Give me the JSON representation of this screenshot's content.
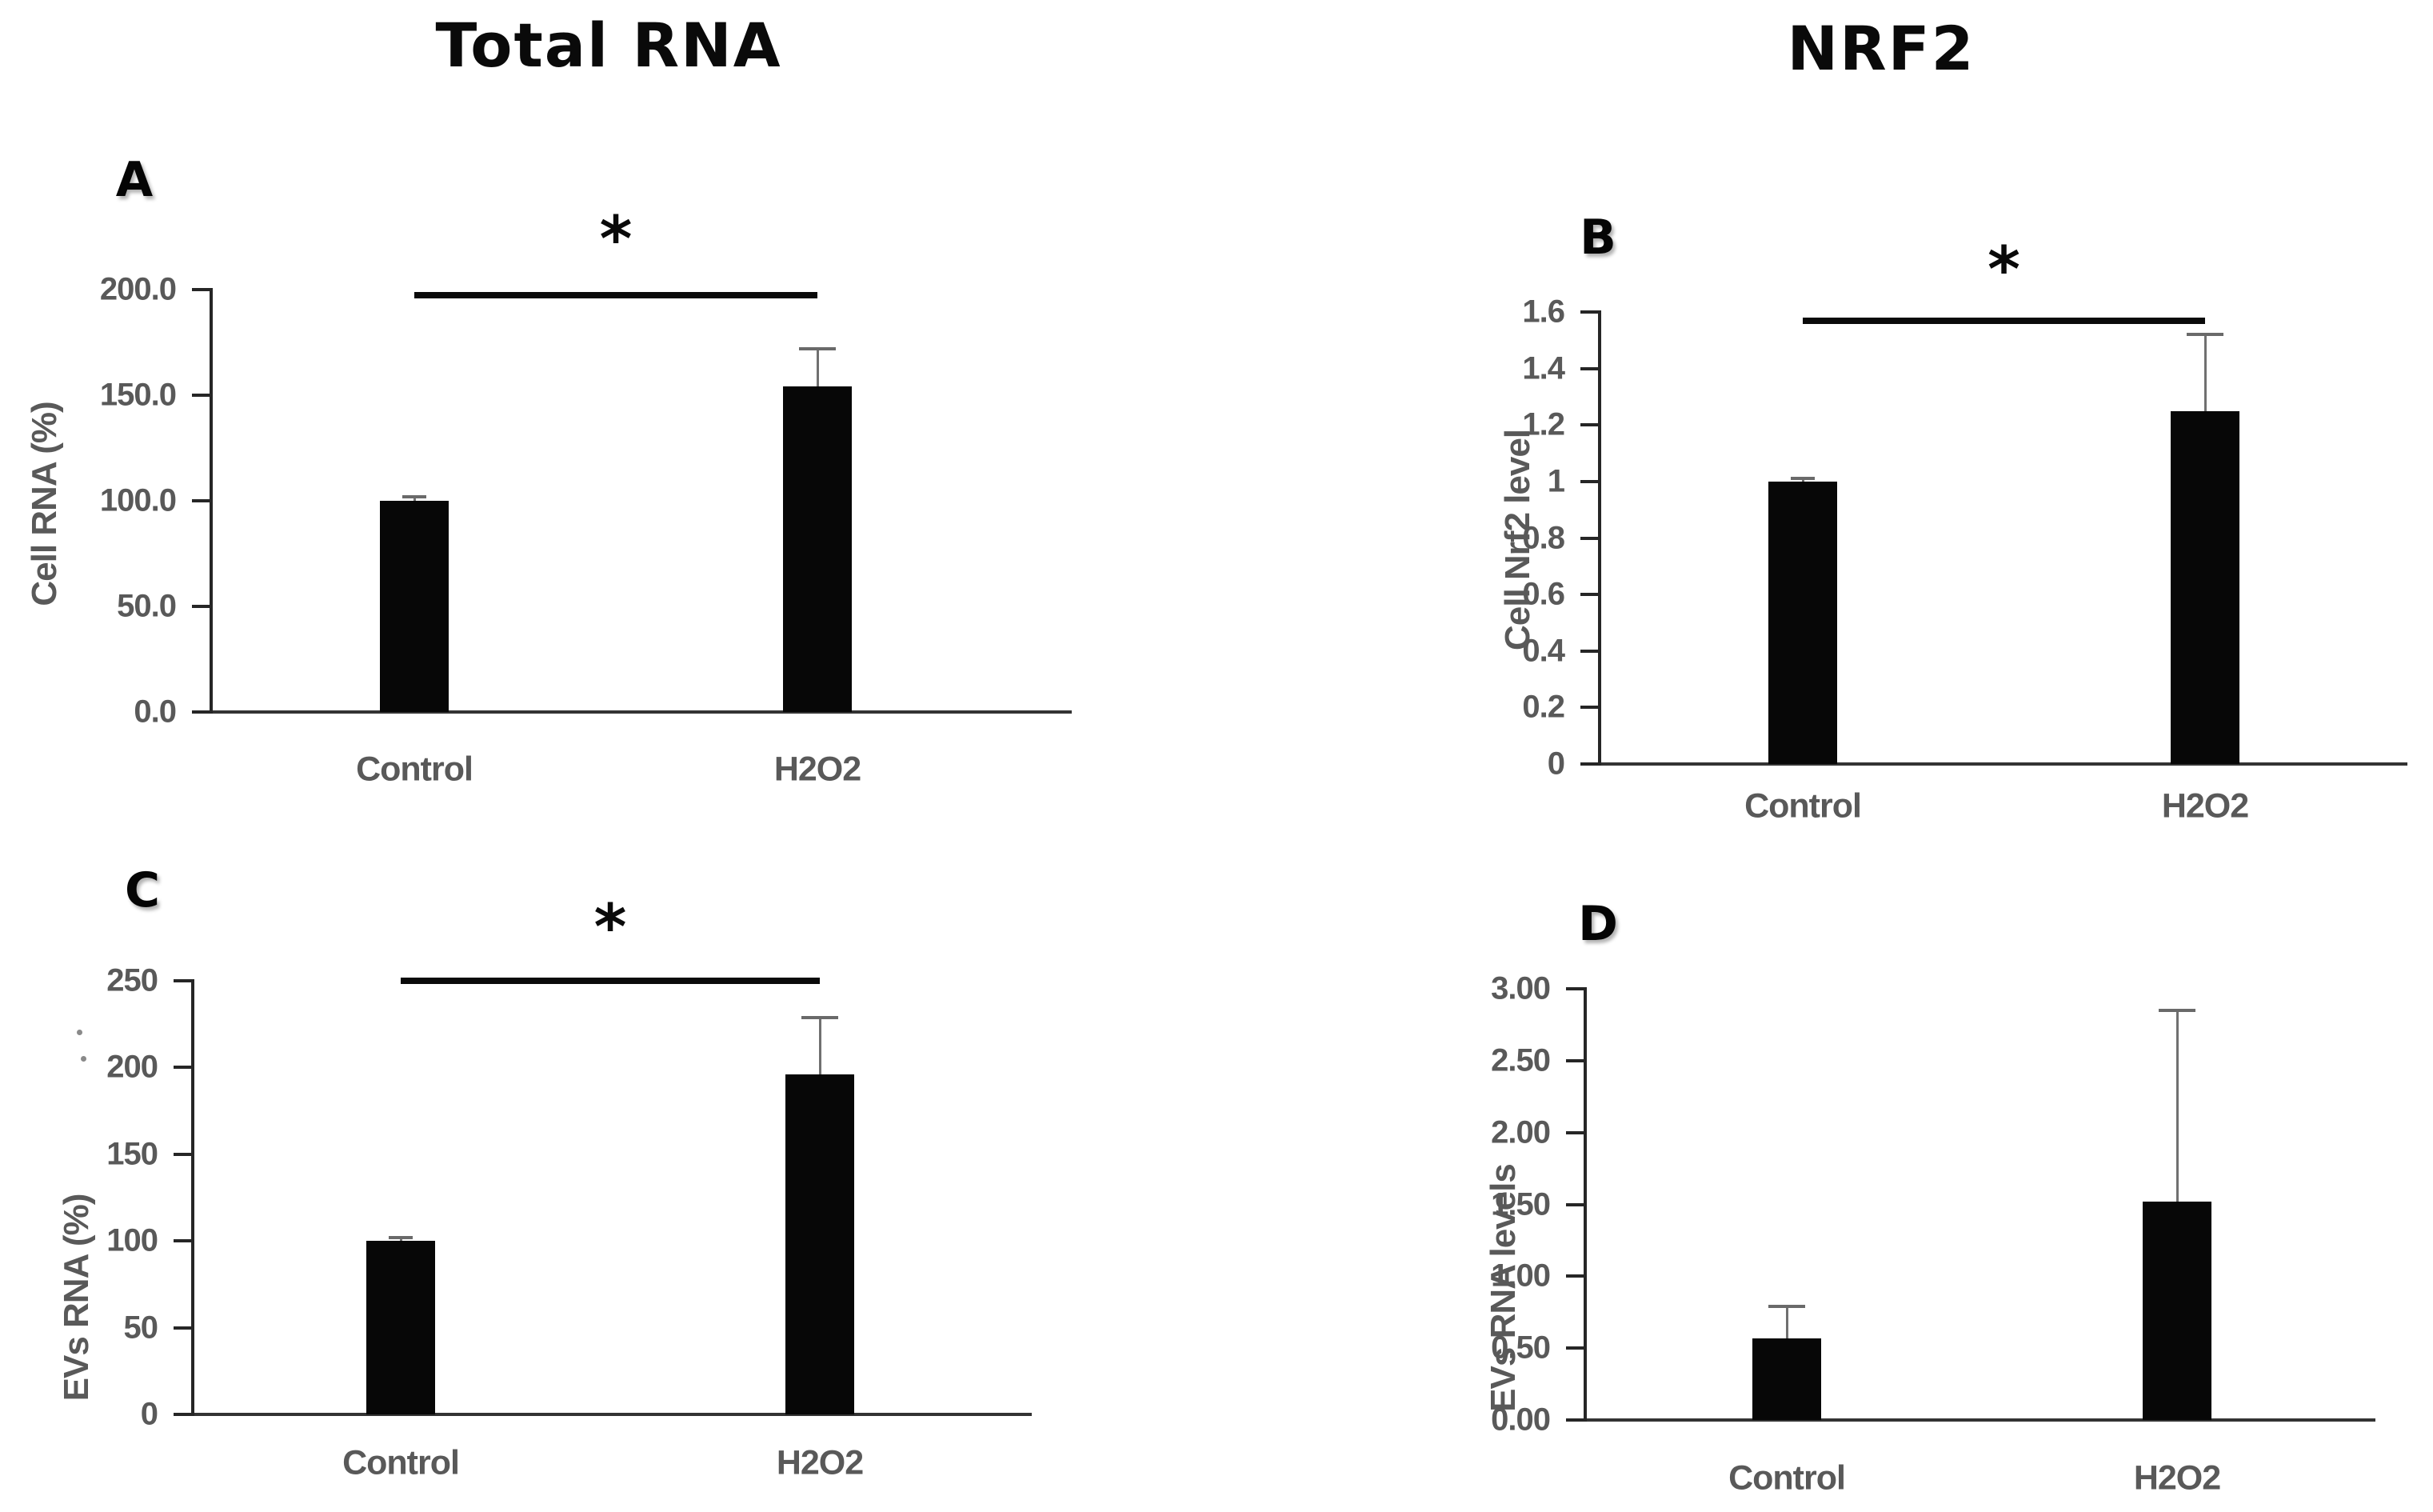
{
  "column_titles": [
    {
      "id": "total-rna",
      "text": "Total RNA"
    },
    {
      "id": "nrf2",
      "text": "NRF2"
    }
  ],
  "colors": {
    "background": "#ffffff",
    "bar": "#070707",
    "axis": "#262626",
    "tick_label": "#595959",
    "category_label": "#595959",
    "error_bar": "#707070",
    "significance": "#0a0a0a",
    "title": "#0a0a0a"
  },
  "chart_data": [
    {
      "type": "bar",
      "panel": "A",
      "group_title": "Total RNA",
      "ylabel": "Cell RNA (%)",
      "categories": [
        "Control",
        "H2O2"
      ],
      "values": [
        100,
        154
      ],
      "error_upper": [
        102,
        172
      ],
      "ylim": [
        0,
        200
      ],
      "yticks": {
        "labels": [
          "0.0",
          "50.0",
          "100.0",
          "150.0",
          "200.0"
        ],
        "values": [
          0,
          50,
          100,
          150,
          200
        ]
      },
      "grid": false,
      "legend": "none",
      "significance": {
        "shown": true,
        "symbol": "*",
        "between": [
          "Control",
          "H2O2"
        ],
        "bracket_value": 199
      }
    },
    {
      "type": "bar",
      "panel": "B",
      "group_title": "NRF2",
      "ylabel": "Cell Nrf2 level",
      "categories": [
        "Control",
        "H2O2"
      ],
      "values": [
        1.0,
        1.25
      ],
      "error_upper": [
        1.01,
        1.52
      ],
      "ylim": [
        0,
        1.6
      ],
      "yticks": {
        "labels": [
          "0",
          "0.2",
          "0.4",
          "0.6",
          "0.8",
          "1",
          "1.2",
          "1.4",
          "1.6"
        ],
        "values": [
          0,
          0.2,
          0.4,
          0.6,
          0.8,
          1,
          1.2,
          1.4,
          1.6
        ]
      },
      "grid": false,
      "legend": "none",
      "significance": {
        "shown": true,
        "symbol": "*",
        "between": [
          "Control",
          "H2O2"
        ],
        "bracket_value": 1.58
      }
    },
    {
      "type": "bar",
      "panel": "C",
      "group_title": "Total RNA",
      "ylabel": "EVs RNA (%)",
      "categories": [
        "Control",
        "H2O2"
      ],
      "values": [
        100,
        196
      ],
      "error_upper": [
        102,
        229
      ],
      "ylim": [
        0,
        250
      ],
      "yticks": {
        "labels": [
          "0",
          "50",
          "100",
          "150",
          "200",
          "250"
        ],
        "values": [
          0,
          50,
          100,
          150,
          200,
          250
        ]
      },
      "grid": false,
      "legend": "none",
      "significance": {
        "shown": true,
        "symbol": "*",
        "between": [
          "Control",
          "H2O2"
        ],
        "bracket_value": 252
      }
    },
    {
      "type": "bar",
      "panel": "D",
      "group_title": "NRF2",
      "ylabel": "EVs RNA levels",
      "categories": [
        "Control",
        "H2O2"
      ],
      "values": [
        0.57,
        1.52
      ],
      "error_upper": [
        0.79,
        2.85
      ],
      "ylim": [
        0,
        3
      ],
      "yticks": {
        "labels": [
          "0.00",
          "0.50",
          "1.00",
          "1.50",
          "2.00",
          "2.50",
          "3.00"
        ],
        "values": [
          0,
          0.5,
          1,
          1.5,
          2,
          2.5,
          3
        ]
      },
      "grid": false,
      "legend": "none",
      "significance": {
        "shown": false,
        "symbol": "",
        "between": [],
        "bracket_value": null
      }
    }
  ]
}
